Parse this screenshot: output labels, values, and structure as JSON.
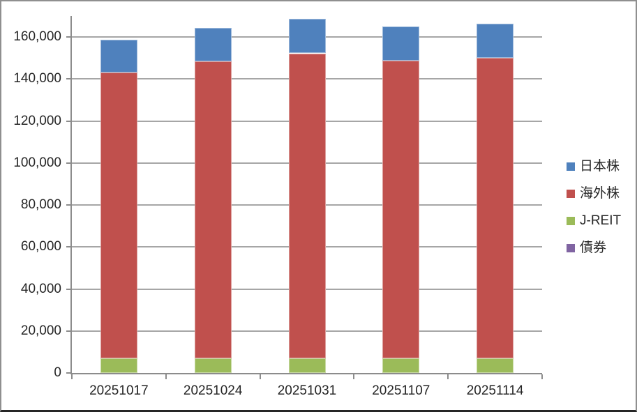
{
  "chart_data": {
    "type": "bar",
    "stacked": true,
    "title": "",
    "xlabel": "",
    "ylabel": "",
    "grid": true,
    "categories": [
      "20251017",
      "20251024",
      "20251031",
      "20251107",
      "20251114"
    ],
    "series": [
      {
        "name": "債券",
        "color": "#8064A2",
        "values": [
          0,
          0,
          0,
          0,
          0
        ]
      },
      {
        "name": "J-REIT",
        "color": "#9BBB59",
        "values": [
          7000,
          7100,
          7100,
          7100,
          7100
        ]
      },
      {
        "name": "海外株",
        "color": "#C0504D",
        "values": [
          136100,
          141400,
          145200,
          141800,
          143100
        ]
      },
      {
        "name": "日本株",
        "color": "#4F81BD",
        "values": [
          15700,
          15900,
          16400,
          16200,
          16300
        ]
      }
    ],
    "totals": [
      158800,
      164400,
      168700,
      165100,
      166500
    ],
    "ylim": [
      0,
      170000
    ],
    "y_major_unit": 20000,
    "y_ticks": [
      {
        "value": 0,
        "label": "0"
      },
      {
        "value": 20000,
        "label": "20,000"
      },
      {
        "value": 40000,
        "label": "40,000"
      },
      {
        "value": 60000,
        "label": "60,000"
      },
      {
        "value": 80000,
        "label": "80,000"
      },
      {
        "value": 100000,
        "label": "100,000"
      },
      {
        "value": 120000,
        "label": "120,000"
      },
      {
        "value": 140000,
        "label": "140,000"
      },
      {
        "value": 160000,
        "label": "160,000"
      }
    ],
    "legend": {
      "position": "right",
      "items": [
        {
          "label": "日本株",
          "color": "#4F81BD"
        },
        {
          "label": "海外株",
          "color": "#C0504D"
        },
        {
          "label": "J-REIT",
          "color": "#9BBB59"
        },
        {
          "label": "債券",
          "color": "#8064A2"
        }
      ]
    }
  },
  "colors": {
    "background": "#FFFFFF",
    "gridline": "#A6A6A6",
    "axis": "#8C8C8C",
    "text": "#262626",
    "chart_border": "#8F8F8F",
    "chart_border_bottom": "#262626"
  }
}
